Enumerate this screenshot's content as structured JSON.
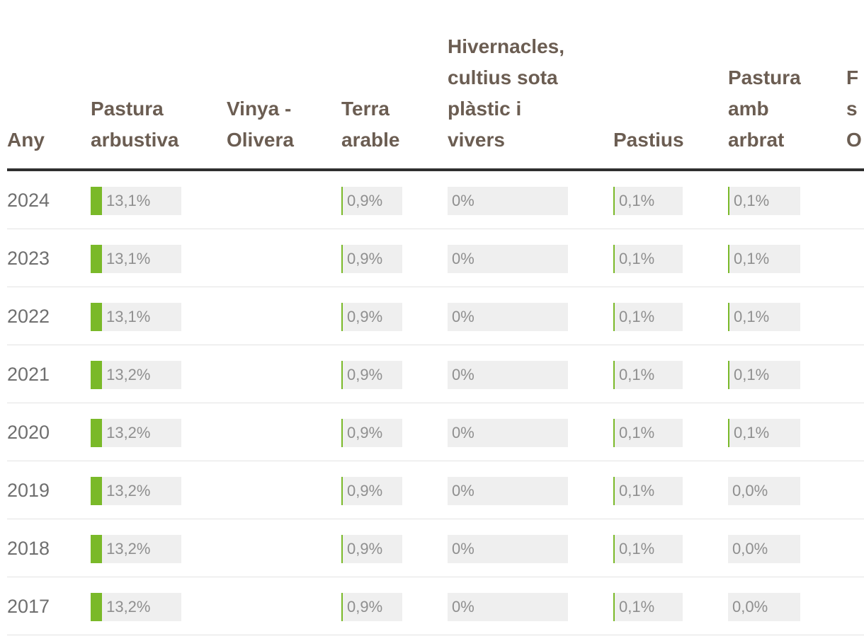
{
  "colors": {
    "bar_fill": "#7ab929",
    "bar_track": "#efefef",
    "header_text": "#6b5d52",
    "rule": "#2f2f2f"
  },
  "columns": [
    {
      "key": "any",
      "lines": [
        "Any"
      ]
    },
    {
      "key": "pastura_arbustiva",
      "lines": [
        "Pastura",
        "arbustiva"
      ]
    },
    {
      "key": "vinya_olivera",
      "lines": [
        "Vinya -",
        "Olivera"
      ]
    },
    {
      "key": "terra_arable",
      "lines": [
        "Terra",
        "arable"
      ]
    },
    {
      "key": "hivernacles",
      "lines": [
        "Hivernacles,",
        "cultius sota",
        "plàstic i",
        "vivers"
      ]
    },
    {
      "key": "pastius",
      "lines": [
        "Pastius"
      ]
    },
    {
      "key": "pastura_amb_arbrat",
      "lines": [
        "Pastura",
        "amb",
        "arbrat"
      ]
    },
    {
      "key": "cut_off",
      "lines": [
        "F",
        "s",
        "O"
      ]
    }
  ],
  "rows": [
    {
      "year": "2024",
      "pastura_arbustiva": {
        "text": "13,1%",
        "value": 13.1
      },
      "terra_arable": {
        "text": "0,9%",
        "value": 0.9
      },
      "hivernacles": {
        "text": "0%",
        "value": 0
      },
      "pastius": {
        "text": "0,1%",
        "value": 0.1
      },
      "pastura_amb_arbrat": {
        "text": "0,1%",
        "value": 0.1
      }
    },
    {
      "year": "2023",
      "pastura_arbustiva": {
        "text": "13,1%",
        "value": 13.1
      },
      "terra_arable": {
        "text": "0,9%",
        "value": 0.9
      },
      "hivernacles": {
        "text": "0%",
        "value": 0
      },
      "pastius": {
        "text": "0,1%",
        "value": 0.1
      },
      "pastura_amb_arbrat": {
        "text": "0,1%",
        "value": 0.1
      }
    },
    {
      "year": "2022",
      "pastura_arbustiva": {
        "text": "13,1%",
        "value": 13.1
      },
      "terra_arable": {
        "text": "0,9%",
        "value": 0.9
      },
      "hivernacles": {
        "text": "0%",
        "value": 0
      },
      "pastius": {
        "text": "0,1%",
        "value": 0.1
      },
      "pastura_amb_arbrat": {
        "text": "0,1%",
        "value": 0.1
      }
    },
    {
      "year": "2021",
      "pastura_arbustiva": {
        "text": "13,2%",
        "value": 13.2
      },
      "terra_arable": {
        "text": "0,9%",
        "value": 0.9
      },
      "hivernacles": {
        "text": "0%",
        "value": 0
      },
      "pastius": {
        "text": "0,1%",
        "value": 0.1
      },
      "pastura_amb_arbrat": {
        "text": "0,1%",
        "value": 0.1
      }
    },
    {
      "year": "2020",
      "pastura_arbustiva": {
        "text": "13,2%",
        "value": 13.2
      },
      "terra_arable": {
        "text": "0,9%",
        "value": 0.9
      },
      "hivernacles": {
        "text": "0%",
        "value": 0
      },
      "pastius": {
        "text": "0,1%",
        "value": 0.1
      },
      "pastura_amb_arbrat": {
        "text": "0,1%",
        "value": 0.1
      }
    },
    {
      "year": "2019",
      "pastura_arbustiva": {
        "text": "13,2%",
        "value": 13.2
      },
      "terra_arable": {
        "text": "0,9%",
        "value": 0.9
      },
      "hivernacles": {
        "text": "0%",
        "value": 0
      },
      "pastius": {
        "text": "0,1%",
        "value": 0.1
      },
      "pastura_amb_arbrat": {
        "text": "0,0%",
        "value": 0.0
      }
    },
    {
      "year": "2018",
      "pastura_arbustiva": {
        "text": "13,2%",
        "value": 13.2
      },
      "terra_arable": {
        "text": "0,9%",
        "value": 0.9
      },
      "hivernacles": {
        "text": "0%",
        "value": 0
      },
      "pastius": {
        "text": "0,1%",
        "value": 0.1
      },
      "pastura_amb_arbrat": {
        "text": "0,0%",
        "value": 0.0
      }
    },
    {
      "year": "2017",
      "pastura_arbustiva": {
        "text": "13,2%",
        "value": 13.2
      },
      "terra_arable": {
        "text": "0,9%",
        "value": 0.9
      },
      "hivernacles": {
        "text": "0%",
        "value": 0
      },
      "pastius": {
        "text": "0,1%",
        "value": 0.1
      },
      "pastura_amb_arbrat": {
        "text": "0,0%",
        "value": 0.0
      }
    }
  ]
}
